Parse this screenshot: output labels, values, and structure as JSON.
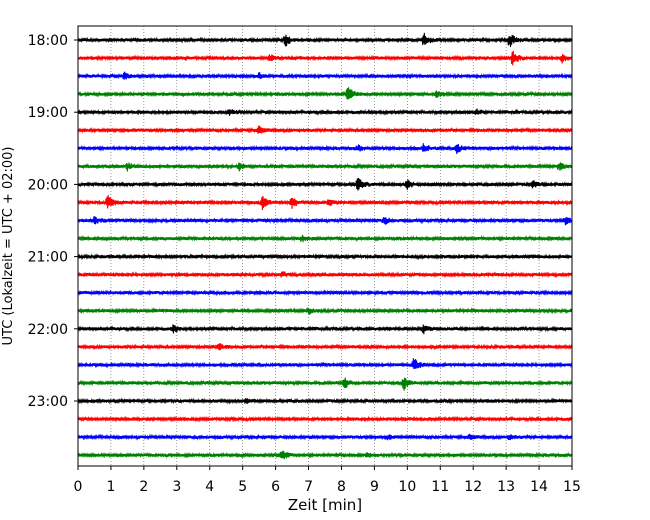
{
  "chart_data": {
    "type": "line",
    "title": "",
    "xlabel": "Zeit  [min]",
    "ylabel": "UTC (Lokalzeit = UTC + 02:00)",
    "xlim": [
      0,
      15
    ],
    "x_ticks": [
      "0",
      "1",
      "2",
      "3",
      "4",
      "5",
      "6",
      "7",
      "8",
      "9",
      "10",
      "11",
      "12",
      "13",
      "14",
      "15"
    ],
    "y_ticks": [
      "18:00",
      "19:00",
      "20:00",
      "21:00",
      "22:00",
      "23:00"
    ],
    "grid": "vertical dotted at each minute",
    "series_colors": [
      "#000000",
      "#ff0000",
      "#0000ff",
      "#008000"
    ],
    "trace_count": 24,
    "trace_start": "18:00",
    "trace_step_minutes": 15,
    "events": [
      {
        "trace": 0,
        "t": 6.3,
        "a": 0.9
      },
      {
        "trace": 0,
        "t": 10.5,
        "a": 0.9
      },
      {
        "trace": 0,
        "t": 13.1,
        "a": 1.0
      },
      {
        "trace": 1,
        "t": 5.8,
        "a": 0.5
      },
      {
        "trace": 1,
        "t": 13.2,
        "a": 1.0
      },
      {
        "trace": 1,
        "t": 14.7,
        "a": 0.5
      },
      {
        "trace": 2,
        "t": 1.4,
        "a": 0.5
      },
      {
        "trace": 2,
        "t": 5.5,
        "a": 0.4
      },
      {
        "trace": 3,
        "t": 8.2,
        "a": 1.0
      },
      {
        "trace": 3,
        "t": 10.9,
        "a": 0.4
      },
      {
        "trace": 4,
        "t": 4.6,
        "a": 0.4
      },
      {
        "trace": 4,
        "t": 12.1,
        "a": 0.3
      },
      {
        "trace": 5,
        "t": 5.5,
        "a": 0.5
      },
      {
        "trace": 6,
        "t": 8.5,
        "a": 0.4
      },
      {
        "trace": 6,
        "t": 10.5,
        "a": 0.6
      },
      {
        "trace": 6,
        "t": 11.5,
        "a": 0.6
      },
      {
        "trace": 7,
        "t": 1.5,
        "a": 0.5
      },
      {
        "trace": 7,
        "t": 4.9,
        "a": 0.5
      },
      {
        "trace": 7,
        "t": 14.6,
        "a": 0.5
      },
      {
        "trace": 8,
        "t": 8.5,
        "a": 0.9
      },
      {
        "trace": 8,
        "t": 10.0,
        "a": 0.6
      },
      {
        "trace": 8,
        "t": 13.8,
        "a": 0.6
      },
      {
        "trace": 9,
        "t": 0.9,
        "a": 1.0
      },
      {
        "trace": 9,
        "t": 5.6,
        "a": 0.9
      },
      {
        "trace": 9,
        "t": 6.5,
        "a": 0.8
      },
      {
        "trace": 9,
        "t": 7.6,
        "a": 0.5
      },
      {
        "trace": 10,
        "t": 0.5,
        "a": 0.5
      },
      {
        "trace": 10,
        "t": 9.3,
        "a": 0.5
      },
      {
        "trace": 10,
        "t": 14.8,
        "a": 0.5
      },
      {
        "trace": 11,
        "t": 6.8,
        "a": 0.4
      },
      {
        "trace": 13,
        "t": 6.2,
        "a": 0.3
      },
      {
        "trace": 15,
        "t": 7.0,
        "a": 0.4
      },
      {
        "trace": 16,
        "t": 2.9,
        "a": 0.5
      },
      {
        "trace": 16,
        "t": 10.5,
        "a": 0.6
      },
      {
        "trace": 17,
        "t": 4.3,
        "a": 0.4
      },
      {
        "trace": 18,
        "t": 10.2,
        "a": 0.9
      },
      {
        "trace": 19,
        "t": 8.1,
        "a": 0.7
      },
      {
        "trace": 19,
        "t": 9.9,
        "a": 0.9
      },
      {
        "trace": 20,
        "t": 5.1,
        "a": 0.3
      },
      {
        "trace": 22,
        "t": 9.4,
        "a": 0.3
      },
      {
        "trace": 22,
        "t": 11.9,
        "a": 0.3
      },
      {
        "trace": 22,
        "t": 13.1,
        "a": 0.3
      },
      {
        "trace": 23,
        "t": 6.2,
        "a": 0.7
      },
      {
        "trace": 23,
        "t": 8.8,
        "a": 0.3
      }
    ]
  }
}
